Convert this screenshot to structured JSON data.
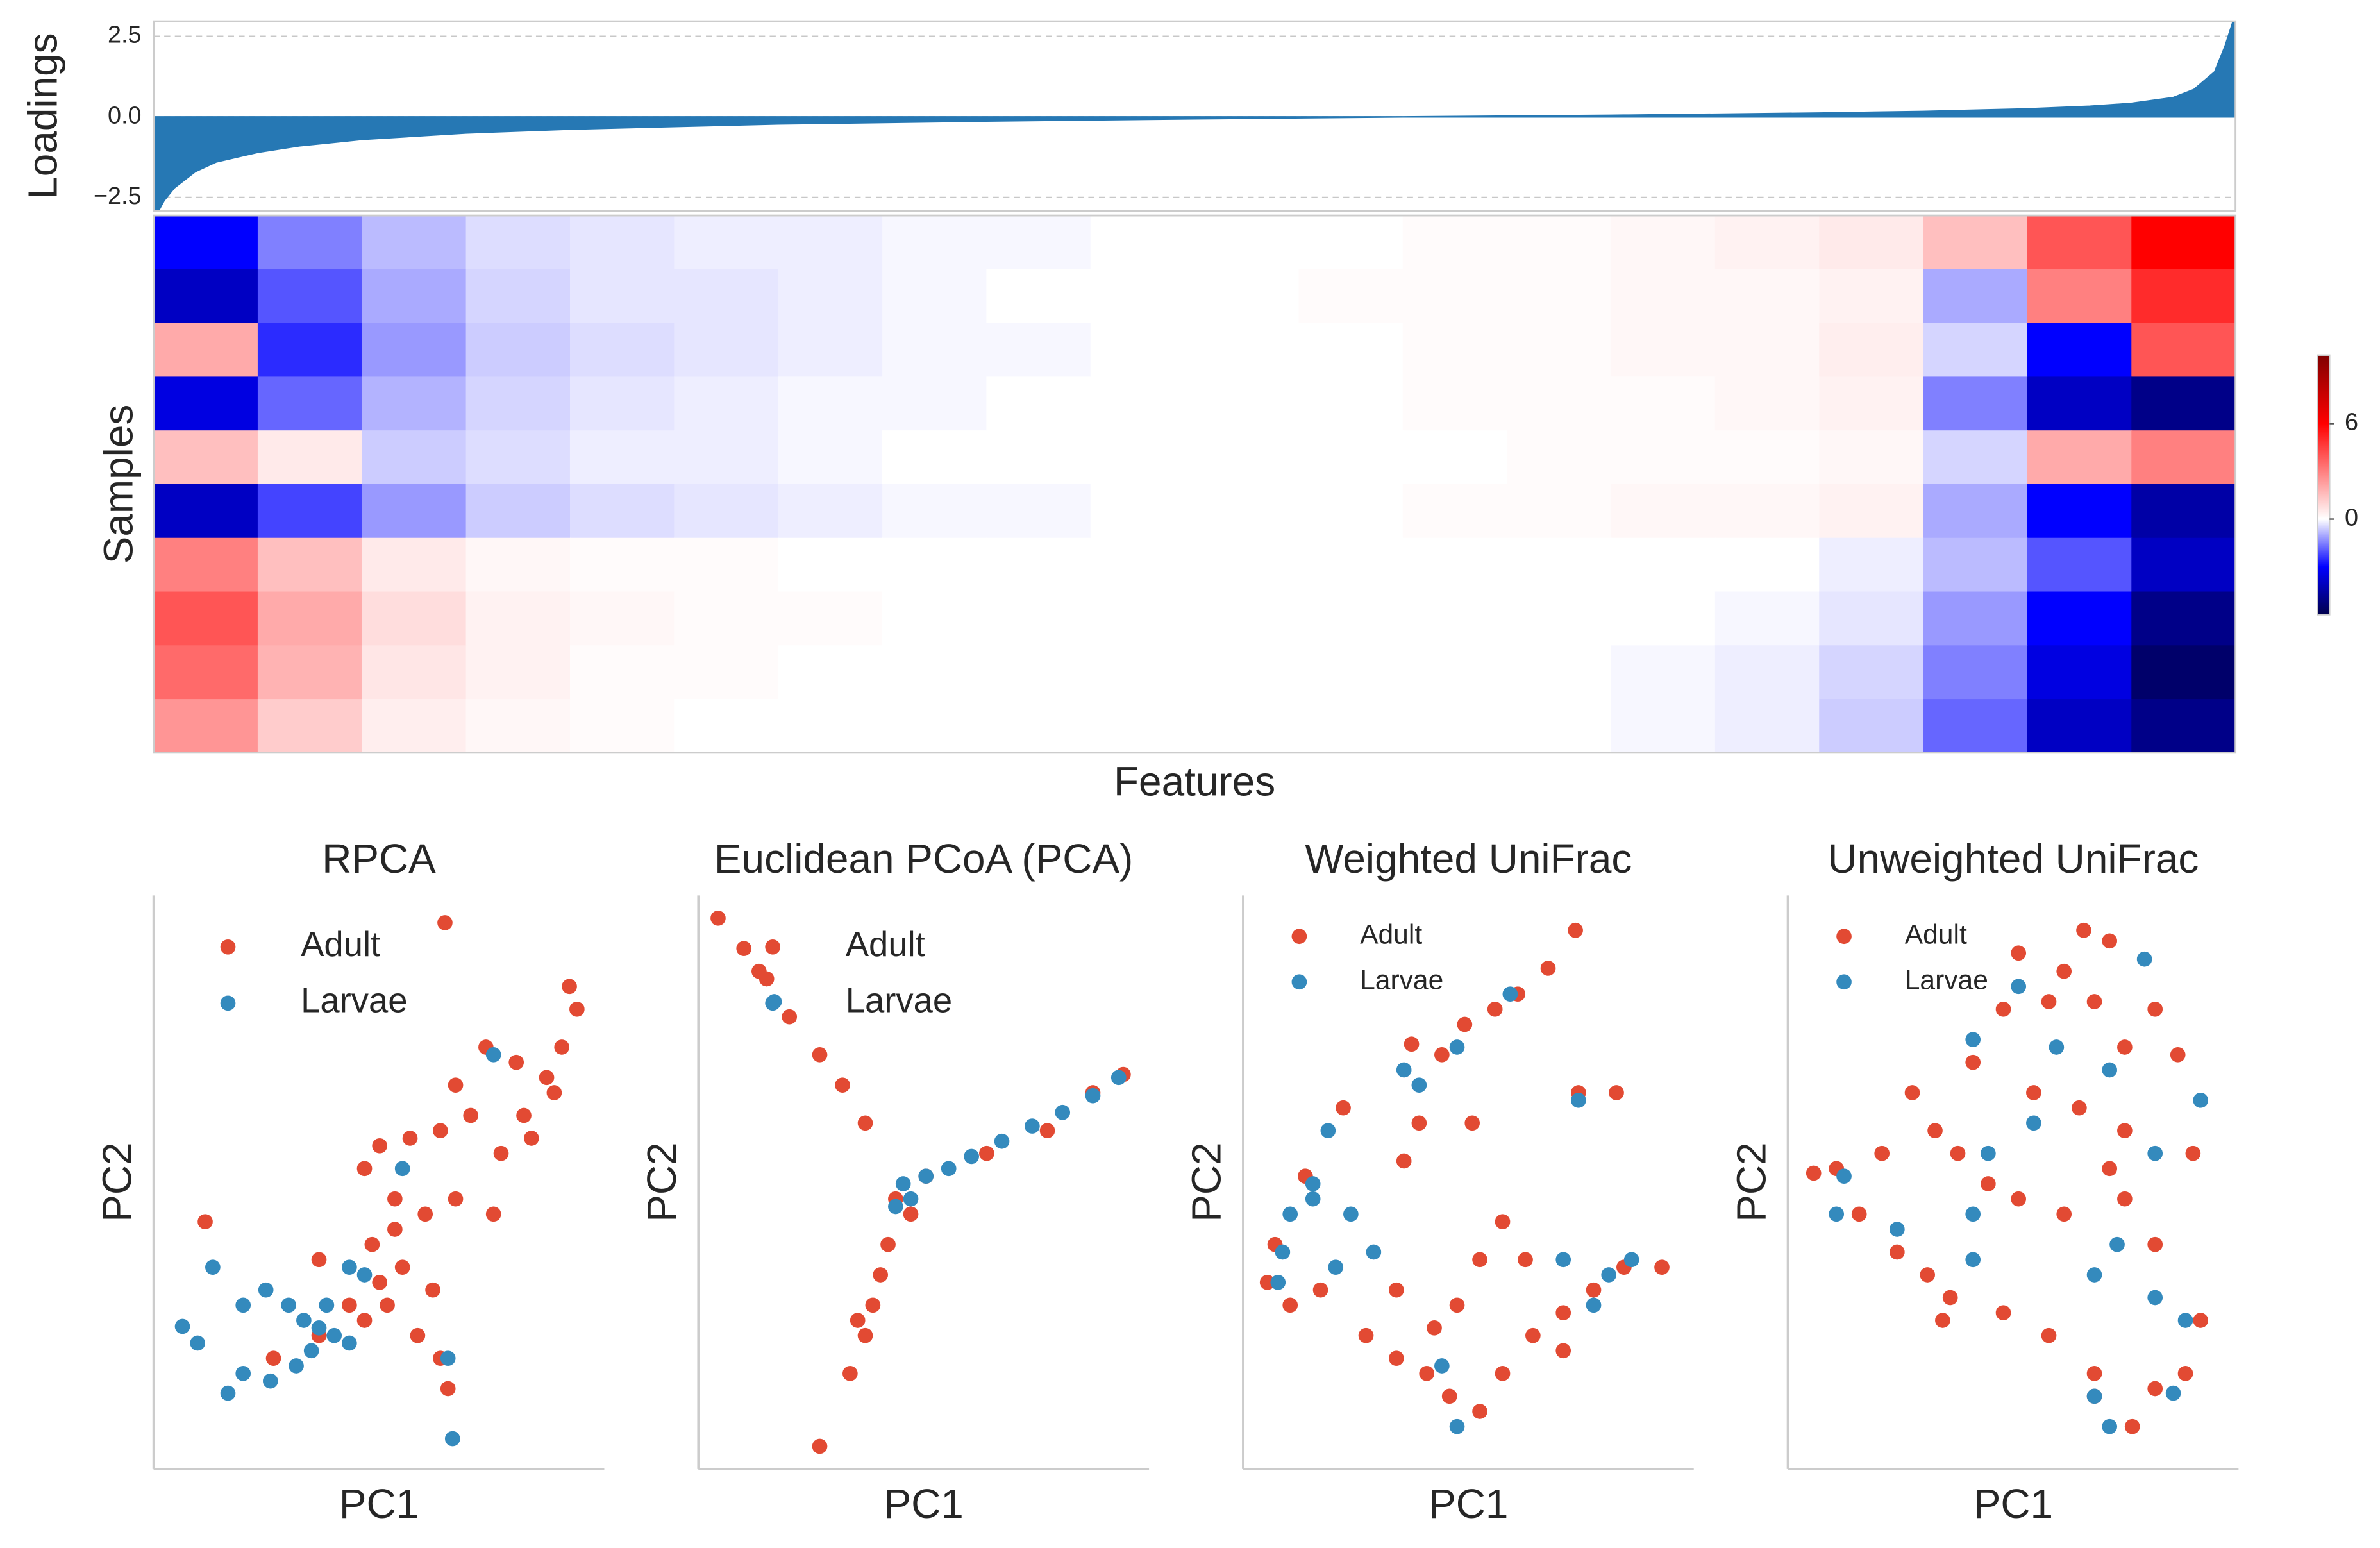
{
  "chart_data": [
    {
      "type": "area",
      "ylabel": "Loadings",
      "color": "#2678b4",
      "grid": true,
      "x": [
        0,
        0.5,
        1,
        2,
        3,
        5,
        7,
        10,
        15,
        20,
        30,
        40,
        50,
        60,
        70,
        80,
        85,
        90,
        93,
        95,
        97,
        98,
        99,
        99.5,
        100
      ],
      "values": [
        -3.2,
        -2.6,
        -2.2,
        -1.7,
        -1.4,
        -1.1,
        -0.9,
        -0.7,
        -0.5,
        -0.38,
        -0.22,
        -0.13,
        -0.06,
        0,
        0.05,
        0.12,
        0.17,
        0.25,
        0.33,
        0.42,
        0.6,
        0.85,
        1.4,
        2.2,
        3.2
      ],
      "xlim": [
        0,
        100
      ],
      "ylim": [
        -2.92,
        2.97
      ],
      "yticks": [
        2.5,
        {
          "value": 0,
          "label": "0.0"
        },
        {
          "value": -2.5,
          "label": "−2.5"
        }
      ]
    },
    {
      "type": "heatmap",
      "ylabel": "Samples",
      "xlabel": "Features",
      "colormap": [
        [
          -6,
          "#00004c"
        ],
        [
          -3,
          "#0000ff"
        ],
        [
          0,
          "#ffffff"
        ],
        [
          6,
          "#ff0000"
        ],
        [
          10.3,
          "#800000"
        ]
      ],
      "clim": [
        -6,
        10.3
      ],
      "cbar_ticks": [
        0,
        6
      ],
      "values": [
        [
          -3,
          -1.5,
          -0.8,
          -0.4,
          -0.3,
          -0.2,
          -0.2,
          -0.1,
          -0.1,
          0,
          0,
          0,
          0.1,
          0.1,
          0.2,
          0.3,
          0.5,
          1.5,
          4,
          6
        ],
        [
          -4,
          -2,
          -1,
          -0.5,
          -0.3,
          -0.3,
          -0.2,
          -0.1,
          0,
          0,
          0,
          0.1,
          0.1,
          0.1,
          0.2,
          0.2,
          0.3,
          -1,
          3,
          5
        ],
        [
          2,
          -2.5,
          -1.2,
          -0.6,
          -0.4,
          -0.3,
          -0.2,
          -0.1,
          -0.1,
          0,
          0,
          0,
          0.1,
          0.1,
          0.2,
          0.2,
          0.4,
          -0.5,
          -3,
          4
        ],
        [
          -3.5,
          -1.8,
          -0.9,
          -0.5,
          -0.3,
          -0.2,
          -0.1,
          -0.1,
          0,
          0,
          0,
          0,
          0.1,
          0.1,
          0.1,
          0.2,
          0.3,
          -1.5,
          -4,
          -5
        ],
        [
          1.5,
          0.5,
          -0.6,
          -0.4,
          -0.2,
          -0.2,
          -0.1,
          0,
          0,
          0,
          0,
          0,
          0,
          0.1,
          0.1,
          0.1,
          0.2,
          -0.5,
          2,
          3
        ],
        [
          -4,
          -2.2,
          -1.2,
          -0.6,
          -0.4,
          -0.3,
          -0.2,
          -0.1,
          -0.1,
          0,
          0,
          0,
          0.1,
          0.1,
          0.2,
          0.2,
          0.3,
          -1,
          -3,
          -4.5
        ],
        [
          3,
          1.5,
          0.5,
          0.2,
          0.1,
          0.1,
          0,
          0,
          0,
          0,
          0,
          0,
          0,
          0,
          0,
          0,
          -0.2,
          -0.8,
          -2,
          -4
        ],
        [
          4,
          2,
          0.8,
          0.3,
          0.2,
          0.1,
          0.1,
          0,
          0,
          0,
          0,
          0,
          0,
          0,
          0,
          -0.1,
          -0.3,
          -1.2,
          -3,
          -5
        ],
        [
          3.5,
          1.8,
          0.6,
          0.3,
          0.1,
          0.1,
          0,
          0,
          0,
          0,
          0,
          0,
          0,
          0,
          -0.1,
          -0.2,
          -0.5,
          -1.5,
          -3.5,
          -5.5
        ],
        [
          2.5,
          1.2,
          0.4,
          0.2,
          0.1,
          0,
          0,
          0,
          0,
          0,
          0,
          0,
          0,
          0,
          -0.1,
          -0.2,
          -0.6,
          -1.8,
          -4,
          -5
        ]
      ]
    },
    {
      "type": "scatter",
      "title": "RPCA",
      "xlabel": "PC1",
      "ylabel": "PC2",
      "legend": "upper left",
      "xlim": [
        0,
        297
      ],
      "ylim": [
        0,
        378
      ],
      "series": [
        {
          "name": "Adult",
          "color": "#e24a33",
          "x": [
            192,
            274,
            279,
            269,
            259,
            239,
            219,
            199,
            249,
            229,
            209,
            189,
            169,
            149,
            139,
            159,
            179,
            199,
            224,
            144,
            164,
            154,
            174,
            189,
            194,
            159,
            109,
            129,
            109,
            34,
            79,
            139,
            184,
            149,
            244,
            264
          ],
          "y": [
            360,
            318,
            303,
            278,
            258,
            268,
            278,
            253,
            218,
            208,
            233,
            223,
            218,
            213,
            198,
            178,
            168,
            178,
            168,
            148,
            133,
            108,
            88,
            73,
            53,
            158,
            138,
            108,
            88,
            163,
            73,
            98,
            118,
            123,
            233,
            248
          ]
        },
        {
          "name": "Larvae",
          "color": "#348abd",
          "x": [
            19,
            39,
            59,
            74,
            89,
            99,
            109,
            119,
            114,
            129,
            139,
            104,
            94,
            77,
            49,
            59,
            29,
            197,
            224,
            164,
            194,
            129
          ],
          "y": [
            94,
            133,
            108,
            118,
            108,
            98,
            93,
            88,
            108,
            133,
            128,
            78,
            68,
            58,
            50,
            63,
            83,
            20,
            273,
            198,
            73,
            83
          ]
        }
      ]
    },
    {
      "type": "scatter",
      "title": "Euclidean PCoA (PCA)",
      "xlabel": "PC1",
      "ylabel": "PC2",
      "legend": "upper left",
      "xlim": [
        0,
        297
      ],
      "ylim": [
        0,
        378
      ],
      "series": [
        {
          "name": "Adult",
          "color": "#e24a33",
          "x": [
            13,
            30,
            45,
            60,
            80,
            95,
            110,
            130,
            125,
            120,
            115,
            110,
            100,
            80,
            150,
            190,
            230,
            260,
            280,
            40,
            140,
            105
          ],
          "y": [
            363,
            343,
            323,
            298,
            273,
            253,
            228,
            178,
            148,
            128,
            108,
            88,
            63,
            15,
            193,
            208,
            223,
            248,
            260,
            328,
            168,
            98
          ]
        },
        {
          "name": "Larvae",
          "color": "#348abd",
          "x": [
            50,
            135,
            150,
            165,
            180,
            200,
            220,
            240,
            260,
            277,
            140,
            130
          ],
          "y": [
            308,
            188,
            193,
            198,
            206,
            216,
            226,
            235,
            246,
            258,
            178,
            173
          ]
        }
      ]
    },
    {
      "type": "scatter",
      "title": "Weighted UniFrac",
      "xlabel": "PC1",
      "ylabel": "PC2",
      "legend": "upper left",
      "xlim": [
        0,
        297
      ],
      "ylim": [
        0,
        378
      ],
      "series": [
        {
          "name": "Adult",
          "color": "#e24a33",
          "x": [
            219,
            201,
            181,
            166,
            146,
            111,
            131,
            116,
            106,
            66,
            41,
            21,
            16,
            31,
            51,
            81,
            101,
            121,
            136,
            156,
            171,
            191,
            211,
            231,
            251,
            276,
            221,
            246,
            151,
            171,
            186,
            156,
            101,
            141,
            211,
            126
          ],
          "y": [
            355,
            330,
            313,
            303,
            293,
            280,
            273,
            228,
            203,
            238,
            193,
            148,
            123,
            108,
            118,
            88,
            73,
            63,
            48,
            38,
            63,
            88,
            103,
            118,
            133,
            133,
            248,
            248,
            228,
            163,
            138,
            138,
            118,
            108,
            78,
            93
          ]
        },
        {
          "name": "Larvae",
          "color": "#348abd",
          "x": [
            176,
            141,
            106,
            116,
            56,
            46,
            31,
            26,
            23,
            71,
            86,
            131,
            141,
            221,
            256,
            241,
            211,
            231,
            61,
            46
          ],
          "y": [
            313,
            278,
            263,
            253,
            223,
            188,
            168,
            143,
            123,
            168,
            143,
            68,
            28,
            243,
            138,
            128,
            138,
            108,
            133,
            178
          ]
        }
      ]
    },
    {
      "type": "scatter",
      "title": "Unweighted UniFrac",
      "xlabel": "PC1",
      "ylabel": "PC2",
      "legend": "upper left",
      "xlim": [
        0,
        297
      ],
      "ylim": [
        0,
        378
      ],
      "series": [
        {
          "name": "Adult",
          "color": "#e24a33",
          "x": [
            195,
            212,
            152,
            182,
            202,
            142,
            172,
            242,
            222,
            257,
            122,
            162,
            82,
            97,
            112,
            62,
            32,
            17,
            47,
            72,
            92,
            107,
            142,
            172,
            202,
            202,
            227,
            242,
            262,
            272,
            242,
            222,
            212,
            182,
            152,
            132,
            267,
            222,
            192,
            102
          ],
          "y": [
            355,
            348,
            340,
            328,
            308,
            303,
            308,
            303,
            278,
            273,
            268,
            248,
            248,
            223,
            208,
            208,
            198,
            195,
            168,
            143,
            128,
            113,
            103,
            88,
            63,
            48,
            28,
            53,
            63,
            98,
            148,
            178,
            198,
            168,
            178,
            188,
            208,
            223,
            238,
            98
          ]
        },
        {
          "name": "Larvae",
          "color": "#348abd",
          "x": [
            235,
            152,
            122,
            177,
            212,
            272,
            242,
            162,
            132,
            37,
            32,
            72,
            122,
            202,
            242,
            262,
            217,
            202,
            212,
            254,
            122
          ],
          "y": [
            336,
            318,
            283,
            278,
            263,
            243,
            208,
            228,
            208,
            193,
            168,
            158,
            168,
            128,
            113,
            98,
            148,
            48,
            28,
            50,
            138
          ]
        }
      ]
    }
  ]
}
